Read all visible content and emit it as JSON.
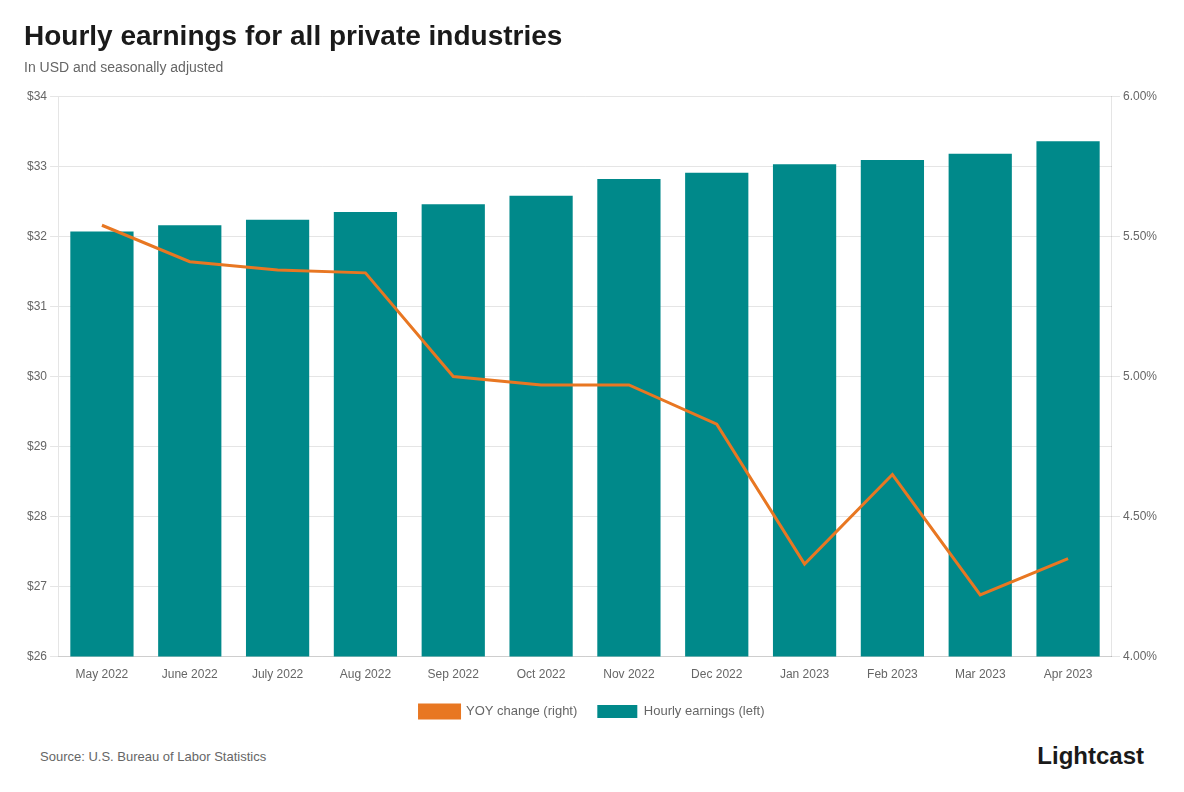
{
  "chart_data": {
    "type": "bar",
    "title": "Hourly earnings for all private industries",
    "subtitle": "In USD and seasonally adjusted",
    "annotations": [
      "Source: U.S. Bureau of Labor Statistics",
      "Lightcast"
    ],
    "categories": [
      "May 2022",
      "June 2022",
      "July 2022",
      "Aug 2022",
      "Sep 2022",
      "Oct 2022",
      "Nov 2022",
      "Dec 2022",
      "Jan 2023",
      "Feb 2023",
      "Mar 2023",
      "Apr 2023"
    ],
    "series": [
      {
        "name": "Hourly earnings (left)",
        "type": "bar",
        "color": "#00898A",
        "values": [
          32.07,
          32.16,
          32.24,
          32.35,
          32.46,
          32.58,
          32.82,
          32.91,
          33.03,
          33.09,
          33.18,
          33.36
        ]
      },
      {
        "name": "YOY change (right)",
        "type": "line",
        "color": "#E87722",
        "axis": "y2",
        "marker": "none",
        "values": [
          5.54,
          5.41,
          5.38,
          5.37,
          5.0,
          4.97,
          4.97,
          4.83,
          4.33,
          4.65,
          4.22,
          4.35
        ]
      }
    ],
    "ylim": [
      26,
      34
    ],
    "yticks": [
      {
        "value": 26,
        "label": "$26"
      },
      {
        "value": 27,
        "label": "$27"
      },
      {
        "value": 28,
        "label": "$28"
      },
      {
        "value": 29,
        "label": "$29"
      },
      {
        "value": 30,
        "label": "$30"
      },
      {
        "value": 31,
        "label": "$31"
      },
      {
        "value": 32,
        "label": "$32"
      },
      {
        "value": 33,
        "label": "$33"
      },
      {
        "value": 34,
        "label": "$34"
      }
    ],
    "y2lim": [
      4.0,
      6.0
    ],
    "y2ticks": [
      {
        "value": 4.0,
        "label": "4.00%"
      },
      {
        "value": 4.5,
        "label": "4.50%"
      },
      {
        "value": 5.0,
        "label": "5.00%"
      },
      {
        "value": 5.5,
        "label": "5.50%"
      },
      {
        "value": 6.0,
        "label": "6.00%"
      }
    ],
    "grid": true,
    "legend": "bottom"
  }
}
